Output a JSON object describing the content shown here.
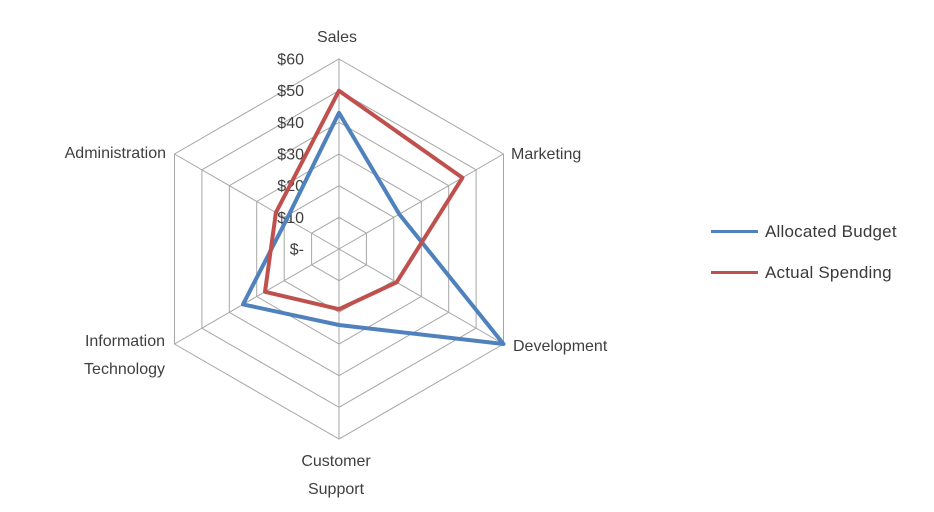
{
  "chart_data": {
    "type": "radar",
    "title": "",
    "categories": [
      "Sales",
      "Marketing",
      "Development",
      "Customer Support",
      "Information Technology",
      "Administration"
    ],
    "series": [
      {
        "name": "Allocated Budget",
        "color": "#4F81BD",
        "values": [
          43,
          22,
          60,
          24,
          35,
          19
        ]
      },
      {
        "name": "Actual Spending",
        "color": "#C0504D",
        "values": [
          50,
          45,
          21,
          19,
          27,
          23
        ]
      }
    ],
    "radial_axis": {
      "min": 0,
      "max": 60,
      "step": 10,
      "tick_labels": [
        "$-",
        "$10",
        "$20",
        "$30",
        "$40",
        "$50",
        "$60"
      ],
      "format": "currency"
    },
    "grid": {
      "shape": "hexagon",
      "rings": 6,
      "color": "#A6A6A6"
    },
    "legend": {
      "position": "right"
    },
    "background": "#FFFFFF"
  }
}
